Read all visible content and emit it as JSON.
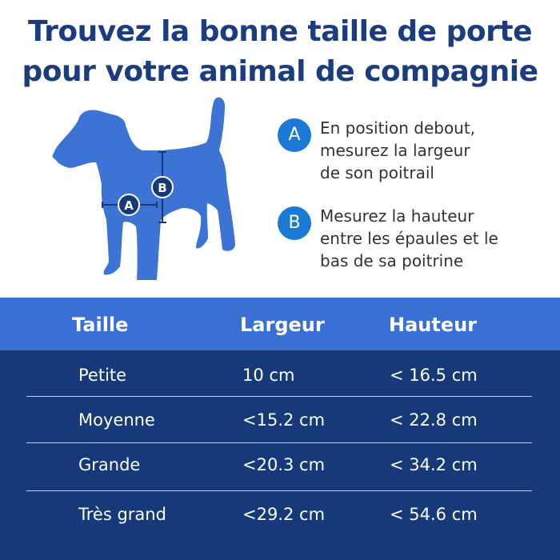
{
  "title": {
    "line1": "Trouvez la bonne taille de porte",
    "line2": "pour votre animal de compagnie"
  },
  "diagram": {
    "marker_a": "A",
    "marker_b": "B"
  },
  "steps": [
    {
      "badge": "A",
      "line1": "En position debout,",
      "line2": "mesurez la largeur",
      "line3": "de son poitrail"
    },
    {
      "badge": "B",
      "line1": "Mesurez la hauteur",
      "line2": "entre les épaules et le",
      "line3": "bas de sa poitrine"
    }
  ],
  "table": {
    "headers": [
      "Taille",
      "Largeur",
      "Hauteur"
    ],
    "rows": [
      [
        "Petite",
        "10 cm",
        "< 16.5 cm"
      ],
      [
        "Moyenne",
        "<15.2 cm",
        "< 22.8 cm"
      ],
      [
        "Grande",
        "<20.3 cm",
        "< 34.2 cm"
      ],
      [
        "Très grand",
        "<29.2 cm",
        "< 54.6 cm"
      ]
    ]
  },
  "colors": {
    "title": "#1b3d80",
    "dog": "#3b74d4",
    "badge": "#1a7ad6",
    "header": "#3a70d4",
    "body": "#16397a"
  }
}
